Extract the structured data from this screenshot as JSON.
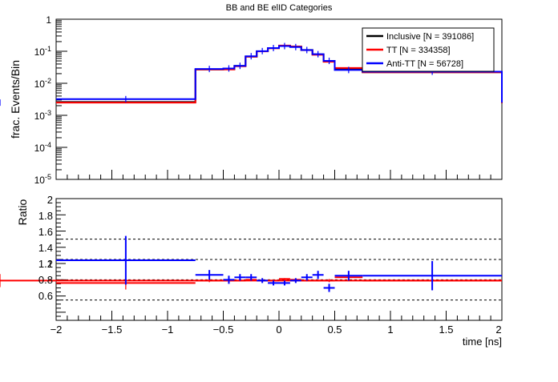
{
  "chart_data": [
    {
      "type": "step",
      "title": "BB and BE elID Categories",
      "ylabel": "frac. Events/Bin",
      "xlabel": "",
      "yscale": "log",
      "ylim": [
        1e-05,
        1
      ],
      "xlim": [
        -2,
        2
      ],
      "y_tick_labels": [
        {
          "mant": "10",
          "exp": "-5",
          "v": 1e-05
        },
        {
          "mant": "10",
          "exp": "-4",
          "v": 0.0001
        },
        {
          "mant": "10",
          "exp": "-3",
          "v": 0.001
        },
        {
          "mant": "10",
          "exp": "-2",
          "v": 0.01
        },
        {
          "mant": "10",
          "exp": "-1",
          "v": 0.1
        },
        {
          "mant": "1",
          "exp": "",
          "v": 1
        }
      ],
      "legend_position": "top-right",
      "legend_entries": [
        {
          "label": "Inclusive [N = 391086]",
          "color": "#000000"
        },
        {
          "label": "TT [N = 334358]",
          "color": "#ff0000"
        },
        {
          "label": "Anti-TT [N = 56728]",
          "color": "#0000ff"
        }
      ],
      "bin_edges": [
        -2,
        -0.75,
        -0.5,
        -0.4,
        -0.3,
        -0.2,
        -0.1,
        0,
        0.1,
        0.2,
        0.3,
        0.4,
        0.5,
        0.75,
        2
      ],
      "series": [
        {
          "color": "#000000",
          "values": [
            0.0026,
            0.027,
            0.028,
            0.035,
            0.068,
            0.1,
            0.125,
            0.15,
            0.14,
            0.11,
            0.08,
            0.049,
            0.029,
            0.022,
            0.0024
          ]
        },
        {
          "color": "#ff0000",
          "values": [
            0.0025,
            0.027,
            0.027,
            0.034,
            0.068,
            0.099,
            0.124,
            0.151,
            0.14,
            0.108,
            0.078,
            0.047,
            0.03,
            0.022,
            0.0024
          ]
        },
        {
          "color": "#0000ff",
          "values": [
            0.0032,
            0.028,
            0.029,
            0.035,
            0.07,
            0.101,
            0.126,
            0.145,
            0.135,
            0.109,
            0.081,
            0.05,
            0.026,
            0.023,
            0.0025
          ]
        }
      ]
    },
    {
      "type": "ratio",
      "ylabel": "Ratio",
      "xlabel": "time [ns]",
      "xlim": [
        -2,
        2
      ],
      "ylim": [
        0.5,
        2
      ],
      "y_ticks": [
        "0.6",
        "0.8",
        "1",
        "1.2",
        "1.4",
        "1.6",
        "1.8",
        "2"
      ],
      "x_ticks": [
        "−2",
        "−1.5",
        "−1",
        "−0.5",
        "0",
        "0.5",
        "1",
        "1.5",
        "2"
      ],
      "reference_lines": [
        0.75,
        1,
        1.25,
        1.5
      ],
      "bin_edges": [
        -2,
        -0.75,
        -0.5,
        -0.4,
        -0.3,
        -0.2,
        -0.1,
        0,
        0.1,
        0.2,
        0.3,
        0.4,
        0.5,
        0.75,
        2
      ],
      "series": [
        {
          "color": "#ff0000",
          "values": [
            0.96,
            0.99,
            0.99,
            0.99,
            1.0,
            0.99,
            0.99,
            1.01,
            1.0,
            0.99,
            0.99,
            0.99,
            1.03,
            0.99,
            0.99
          ],
          "errors": [
            0.08,
            0.02,
            0.02,
            0.01,
            0.01,
            0.01,
            0.01,
            0.01,
            0.01,
            0.01,
            0.01,
            0.02,
            0.03,
            0.01,
            0.08
          ]
        },
        {
          "color": "#0000ff",
          "markers": [
            {
              "x": -1.375,
              "xerr": 0.625,
              "y": 1.24,
              "yerr": 0.3
            },
            {
              "x": -0.625,
              "xerr": 0.125,
              "y": 1.06,
              "yerr": 0.06
            },
            {
              "x": -0.45,
              "xerr": 0.05,
              "y": 1.0,
              "yerr": 0.05
            },
            {
              "x": -0.35,
              "xerr": 0.05,
              "y": 1.03,
              "yerr": 0.04
            },
            {
              "x": -0.25,
              "xerr": 0.05,
              "y": 1.03,
              "yerr": 0.04
            },
            {
              "x": -0.15,
              "xerr": 0.05,
              "y": 0.99,
              "yerr": 0.03
            },
            {
              "x": -0.05,
              "xerr": 0.05,
              "y": 0.96,
              "yerr": 0.03
            },
            {
              "x": 0.05,
              "xerr": 0.05,
              "y": 0.96,
              "yerr": 0.03
            },
            {
              "x": 0.15,
              "xerr": 0.05,
              "y": 0.99,
              "yerr": 0.03
            },
            {
              "x": 0.25,
              "xerr": 0.05,
              "y": 1.03,
              "yerr": 0.04
            },
            {
              "x": 0.35,
              "xerr": 0.05,
              "y": 1.06,
              "yerr": 0.05
            },
            {
              "x": 0.45,
              "xerr": 0.05,
              "y": 0.9,
              "yerr": 0.05
            },
            {
              "x": 0.625,
              "xerr": 0.125,
              "y": 1.05,
              "yerr": 0.06
            },
            {
              "x": 1.375,
              "xerr": 0.625,
              "y": 1.05,
              "yerr": 0.18
            }
          ]
        }
      ]
    }
  ]
}
